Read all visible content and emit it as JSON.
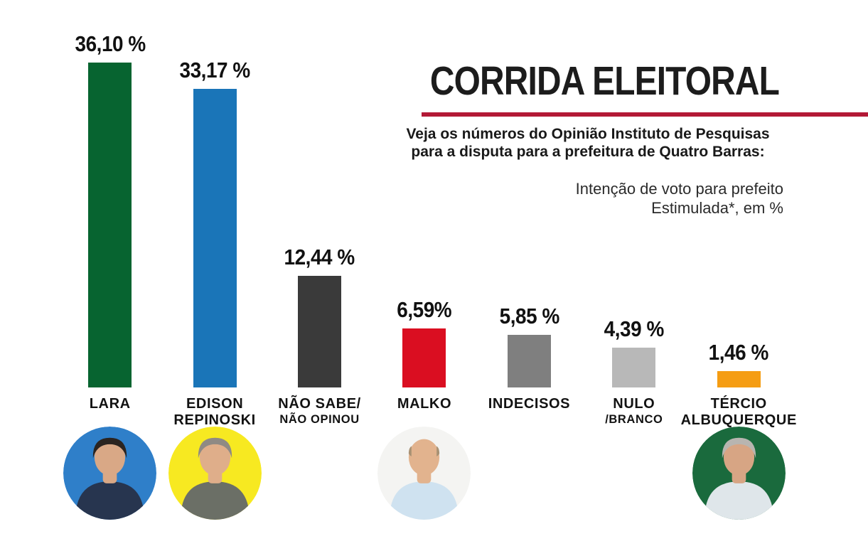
{
  "header": {
    "title": "CORRIDA ELEITORAL",
    "subtitle_line1": "Veja os números do Opinião Instituto de Pesquisas",
    "subtitle_line2": "para a disputa para a prefeitura de Quatro Barras:",
    "note_line1": "Intenção de voto para prefeito",
    "note_line2": "Estimulada*, em %",
    "accent_line_color": "#b31936"
  },
  "chart_data": {
    "type": "bar",
    "title": "CORRIDA ELEITORAL",
    "subtitle": "Veja os números do Opinião Instituto de Pesquisas para a disputa para a prefeitura de Quatro Barras:",
    "annotation": "Intenção de voto para prefeito Estimulada*, em %",
    "unit": "%",
    "ylim": [
      0,
      38
    ],
    "grid": false,
    "legend": false,
    "value_label_position": "above-bar",
    "categories": [
      "LARA",
      "EDISON REPINOSKI",
      "NÃO SABE/ NÃO OPINOU",
      "MALKO",
      "INDECISOS",
      "NULO /BRANCO",
      "TÉRCIO ALBUQUERQUE"
    ],
    "values": [
      36.1,
      33.17,
      12.44,
      6.59,
      5.85,
      4.39,
      1.46
    ],
    "bars": [
      {
        "slug": "lara",
        "value": 36.1,
        "value_label": "36,10 %",
        "name_line1": "LARA",
        "name_line2": "",
        "name_line2_small": false,
        "color": "#076430",
        "photo": {
          "bg": "#2f7fc9",
          "style": "hair",
          "hair": "#2b2420",
          "skin": "#d9a886",
          "shirt": "#27354f"
        }
      },
      {
        "slug": "edison-repinoski",
        "value": 33.17,
        "value_label": "33,17 %",
        "name_line1": "EDISON",
        "name_line2": "REPINOSKI",
        "name_line2_small": false,
        "color": "#1a75b8",
        "photo": {
          "bg": "#f7e921",
          "style": "hair",
          "hair": "#8f8a84",
          "skin": "#dfae8a",
          "shirt": "#6b6f66"
        }
      },
      {
        "slug": "nao-sabe-nao-opinou",
        "value": 12.44,
        "value_label": "12,44 %",
        "name_line1": "NÃO SABE/",
        "name_line2": "NÃO OPINOU",
        "name_line2_small": true,
        "color": "#3a3a3a",
        "photo": null
      },
      {
        "slug": "malko",
        "value": 6.59,
        "value_label": "6,59%",
        "name_line1": "MALKO",
        "name_line2": "",
        "name_line2_small": false,
        "color": "#da0e21",
        "photo": {
          "bg": "#f4f4f2",
          "style": "bald",
          "hair": "#a89173",
          "skin": "#e2b38e",
          "shirt": "#cfe2f0"
        }
      },
      {
        "slug": "indecisos",
        "value": 5.85,
        "value_label": "5,85 %",
        "name_line1": "INDECISOS",
        "name_line2": "",
        "name_line2_small": false,
        "color": "#7f7f7f",
        "photo": null
      },
      {
        "slug": "nulo-branco",
        "value": 4.39,
        "value_label": "4,39 %",
        "name_line1": "NULO",
        "name_line2": "/BRANCO",
        "name_line2_small": true,
        "color": "#b8b8b8",
        "photo": null
      },
      {
        "slug": "tercio-albuquerque",
        "value": 1.46,
        "value_label": "1,46 %",
        "name_line1": "TÉRCIO",
        "name_line2": "ALBUQUERQUE",
        "name_line2_small": false,
        "color": "#f59d13",
        "photo": {
          "bg": "#1a6a3d",
          "style": "hair",
          "hair": "#b8b5b0",
          "skin": "#d7a584",
          "shirt": "#dfe6ea"
        }
      }
    ]
  }
}
